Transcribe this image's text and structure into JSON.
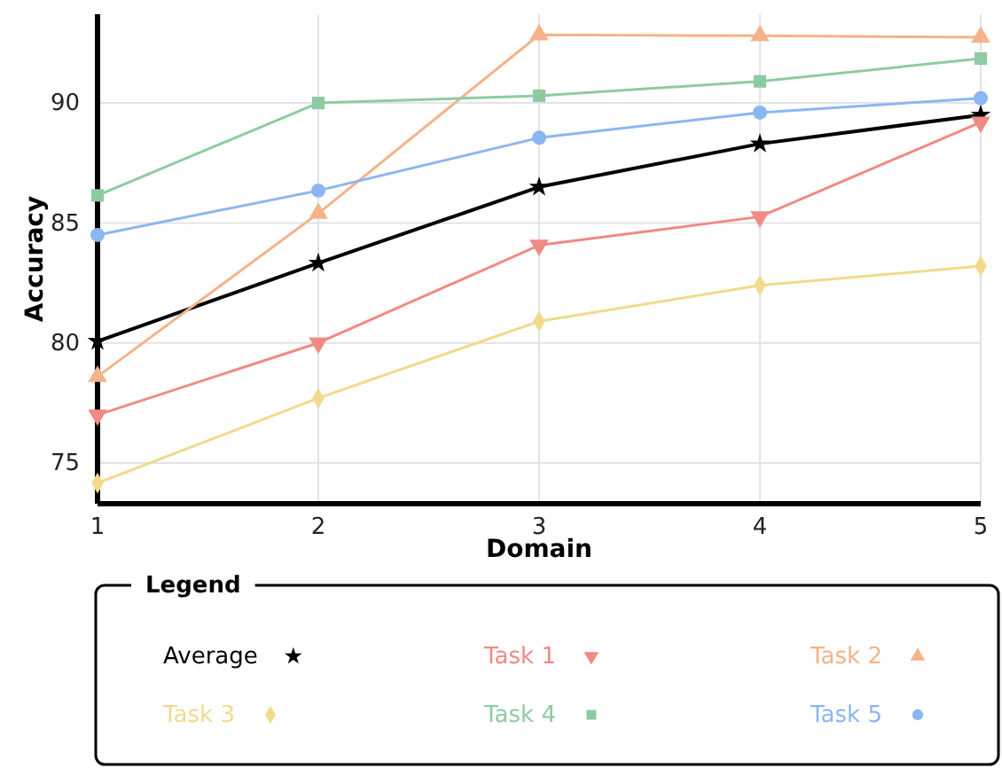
{
  "chart_data": {
    "type": "line",
    "xlabel": "Domain",
    "ylabel": "Accuracy",
    "legend_title": "Legend",
    "x": [
      1,
      2,
      3,
      4,
      5
    ],
    "xlim": [
      1,
      5
    ],
    "xticks": [
      1,
      2,
      3,
      4,
      5
    ],
    "ylim": [
      73.3,
      93.7
    ],
    "yticks": [
      75,
      80,
      85,
      90
    ],
    "grid": true,
    "legend": "bottom",
    "line_style": "solid",
    "series": [
      {
        "name": "Average",
        "color": "#000000",
        "marker": "star",
        "values": [
          80.07,
          83.33,
          86.5,
          88.3,
          89.5
        ]
      },
      {
        "name": "Task 1",
        "color": "#f08a84",
        "marker": "triangle-down",
        "values": [
          77.0,
          80.0,
          84.07,
          85.26,
          89.2
        ]
      },
      {
        "name": "Task 2",
        "color": "#f4b389",
        "marker": "triangle",
        "values": [
          78.6,
          85.4,
          92.84,
          92.8,
          92.74
        ]
      },
      {
        "name": "Task 3",
        "color": "#f2da8c",
        "marker": "diamond",
        "values": [
          74.16,
          77.7,
          80.9,
          82.4,
          83.2
        ]
      },
      {
        "name": "Task 4",
        "color": "#8ecba2",
        "marker": "square",
        "values": [
          86.15,
          90.0,
          90.3,
          90.9,
          91.85
        ]
      },
      {
        "name": "Task 5",
        "color": "#8cb6f2",
        "marker": "circle",
        "values": [
          84.5,
          86.35,
          88.55,
          89.6,
          90.2
        ]
      }
    ]
  }
}
